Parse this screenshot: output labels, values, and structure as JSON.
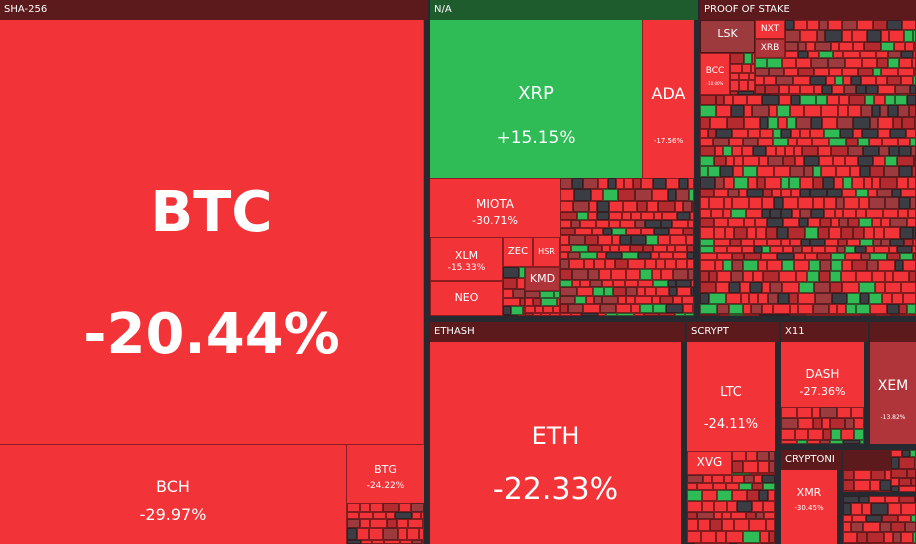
{
  "colors": {
    "red": "#f23338",
    "green": "#2fbc57",
    "dark_red": "#b32b2f",
    "maroon": "#9c3a3e",
    "header_red": "#5c1a1c",
    "header_green": "#1e5b2d",
    "border": "#262930"
  },
  "groups": {
    "sha256": "SHA-256",
    "na": "N/A",
    "pos": "PROOF OF STAKE",
    "ethash": "ETHASH",
    "scrypt": "SCRYPT",
    "x11": "X11",
    "cryptonight": "CRYPTONI"
  },
  "tiles": {
    "btc": {
      "name": "BTC",
      "change": "-20.44%"
    },
    "bch": {
      "name": "BCH",
      "change": "-29.97%"
    },
    "btg": {
      "name": "BTG",
      "change": "-24.22%"
    },
    "xrp": {
      "name": "XRP",
      "change": "+15.15%"
    },
    "ada": {
      "name": "ADA",
      "change": "-17.56%"
    },
    "miota": {
      "name": "MIOTA",
      "change": "-30.71%"
    },
    "xlm": {
      "name": "XLM",
      "change": "-15.33%"
    },
    "zec": {
      "name": "ZEC"
    },
    "hsr": {
      "name": "HSR"
    },
    "kmd": {
      "name": "KMD"
    },
    "neo": {
      "name": "NEO"
    },
    "lsk": {
      "name": "LSK"
    },
    "nxt": {
      "name": "NXT"
    },
    "xrb": {
      "name": "XRB"
    },
    "bcc": {
      "name": "BCC",
      "change": "-10.00%"
    },
    "eth": {
      "name": "ETH",
      "change": "-22.33%"
    },
    "ltc": {
      "name": "LTC",
      "change": "-24.11%"
    },
    "xvg": {
      "name": "XVG"
    },
    "dash": {
      "name": "DASH",
      "change": "-27.36%"
    },
    "xem": {
      "name": "XEM",
      "change": "-13.82%"
    },
    "xmr": {
      "name": "XMR",
      "change": "-30.45%"
    }
  }
}
